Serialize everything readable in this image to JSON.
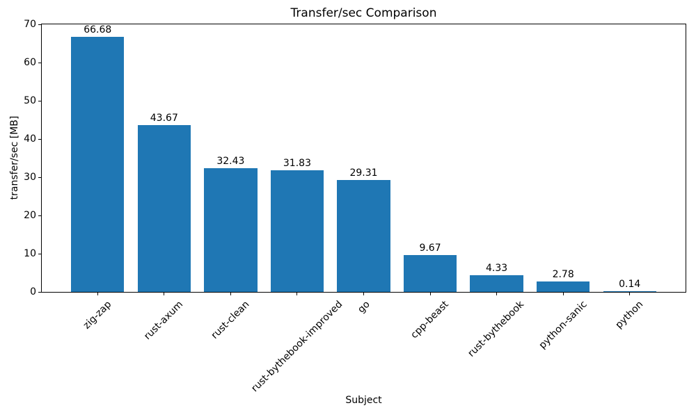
{
  "chart_data": {
    "type": "bar",
    "title": "Transfer/sec Comparison",
    "xlabel": "Subject",
    "ylabel": "transfer/sec [MB]",
    "categories": [
      "zig-zap",
      "rust-axum",
      "rust-clean",
      "rust-bythebook-improved",
      "go",
      "cpp-beast",
      "rust-bythebook",
      "python-sanic",
      "python"
    ],
    "values": [
      66.68,
      43.67,
      32.43,
      31.83,
      29.31,
      9.67,
      4.33,
      2.78,
      0.14
    ],
    "bar_labels": [
      "66.68",
      "43.67",
      "32.43",
      "31.83",
      "29.31",
      "9.67",
      "4.33",
      "2.78",
      "0.14"
    ],
    "ylim": [
      0,
      70
    ],
    "yticks": [
      0,
      10,
      20,
      30,
      40,
      50,
      60,
      70
    ],
    "bar_color": "#1f77b4",
    "axis_color": "#000000",
    "text_color": "#000000",
    "grid": false,
    "legend": "none",
    "x_tick_label_rotation_deg": 45
  }
}
